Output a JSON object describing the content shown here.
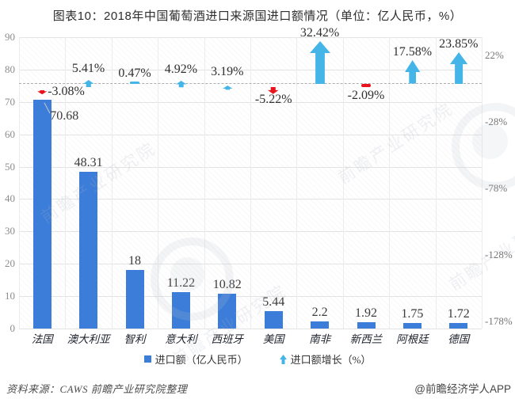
{
  "title": "图表10：2018年中国葡萄酒进口来源国进口额情况（单位：亿人民币，%）",
  "chart_data": {
    "type": "bar",
    "title": "图表10：2018年中国葡萄酒进口来源国进口额情况（单位：亿人民币，%）",
    "categories": [
      "法国",
      "澳大利亚",
      "智利",
      "意大利",
      "西班牙",
      "美国",
      "南非",
      "新西兰",
      "阿根廷",
      "德国"
    ],
    "series": [
      {
        "name": "进口额（亿人民币）",
        "type": "bar",
        "values": [
          70.68,
          48.31,
          18,
          11.22,
          10.82,
          5.44,
          2.2,
          1.92,
          1.75,
          1.72
        ]
      },
      {
        "name": "进口额增长（%）",
        "type": "arrow",
        "values": [
          -3.08,
          5.41,
          0.47,
          4.92,
          3.19,
          -5.22,
          32.42,
          -2.09,
          17.58,
          23.85
        ]
      }
    ],
    "value_labels": [
      "70.68",
      "48.31",
      "18",
      "11.22",
      "10.82",
      "5.44",
      "2.2",
      "1.92",
      "1.75",
      "1.72"
    ],
    "growth_labels": [
      "-3.08%",
      "5.41%",
      "0.47%",
      "4.92%",
      "3.19%",
      "-5.22%",
      "32.42%",
      "-2.09%",
      "17.58%",
      "23.85%"
    ],
    "left_axis": {
      "ticks": [
        90,
        80,
        70,
        60,
        50,
        40,
        30,
        20,
        10,
        0
      ],
      "range": [
        0,
        90
      ]
    },
    "right_axis": {
      "ticks": [
        "22%",
        "-28%",
        "-78%",
        "-128%",
        "-178%"
      ],
      "range_percent": [
        -178,
        22
      ]
    },
    "zero_growth_dashed_line": true,
    "grid": true,
    "legend_position": "bottom",
    "colors": {
      "bar": "#3B7DD8",
      "growth_up": "#45B5E8",
      "growth_down": "#E9131E",
      "dashed_line": "#ADADAD"
    }
  },
  "legend": {
    "items": [
      {
        "label": "进口额（亿人民币）",
        "swatch": "blue-square"
      },
      {
        "label": "进口额增长（%）",
        "swatch": "up-arrow-icon"
      }
    ]
  },
  "watermark": {
    "text": "前瞻产业研究院"
  },
  "footer": {
    "source": "资料来源：CAWS  前瞻产业研究院整理",
    "brand": "@前瞻经济学人APP"
  }
}
